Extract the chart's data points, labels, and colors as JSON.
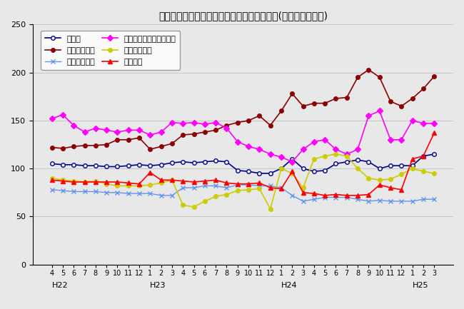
{
  "title": "三重県鉱工業生産及び主要業種別指数の推移(季節調整済指数)",
  "xlabels": [
    "4",
    "5",
    "6",
    "7",
    "8",
    "9",
    "10",
    "11",
    "12",
    "1",
    "2",
    "3",
    "4",
    "5",
    "6",
    "7",
    "8",
    "9",
    "10",
    "11",
    "12",
    "1",
    "2",
    "3",
    "4",
    "5",
    "6",
    "7",
    "8",
    "9",
    "10",
    "11",
    "12",
    "1",
    "2",
    "3"
  ],
  "year_labels": [
    {
      "label": "H22",
      "index": 0
    },
    {
      "label": "H23",
      "index": 9
    },
    {
      "label": "H24",
      "index": 21
    },
    {
      "label": "H25",
      "index": 33
    }
  ],
  "series_order": [
    "鉱工業",
    "一般機械工業",
    "電気機械工業",
    "電子部品・デバイス工業",
    "輸送機械工業",
    "化学工業"
  ],
  "legend_order": [
    "鉱工業",
    "一般機械工業",
    "電気機械工業",
    "電子部品・デバイス工業",
    "輸送機械工業",
    "化学工業"
  ],
  "series": {
    "鉱工業": {
      "color": "#00008B",
      "marker": "o",
      "markersize": 4,
      "markerfacecolor": "white",
      "markeredgecolor": "#00008B",
      "linewidth": 1.2,
      "values": [
        105,
        104,
        104,
        103,
        103,
        102,
        102,
        103,
        104,
        103,
        104,
        106,
        107,
        106,
        107,
        108,
        107,
        98,
        97,
        95,
        95,
        100,
        110,
        100,
        97,
        98,
        105,
        107,
        109,
        107,
        100,
        103,
        103,
        103,
        113,
        115
      ]
    },
    "一般機械工業": {
      "color": "#8B0000",
      "marker": "o",
      "markersize": 4,
      "markerfacecolor": "#8B0000",
      "markeredgecolor": "#8B0000",
      "linewidth": 1.2,
      "values": [
        122,
        121,
        123,
        124,
        124,
        125,
        130,
        130,
        132,
        120,
        123,
        126,
        135,
        136,
        138,
        140,
        145,
        148,
        150,
        155,
        145,
        160,
        178,
        165,
        168,
        168,
        173,
        174,
        195,
        203,
        195,
        170,
        165,
        173,
        183,
        196
      ]
    },
    "電気機械工業": {
      "color": "#6495ED",
      "marker": "x",
      "markersize": 5,
      "markerfacecolor": "#6495ED",
      "markeredgecolor": "#6495ED",
      "linewidth": 1.0,
      "values": [
        78,
        77,
        76,
        76,
        76,
        75,
        75,
        74,
        74,
        74,
        72,
        72,
        80,
        80,
        82,
        82,
        80,
        83,
        83,
        82,
        82,
        80,
        72,
        66,
        68,
        70,
        70,
        70,
        68,
        66,
        67,
        66,
        66,
        66,
        68,
        68
      ]
    },
    "電子部品・デバイス工業": {
      "color": "#FF00FF",
      "marker": "D",
      "markersize": 4,
      "markerfacecolor": "#FF00FF",
      "markeredgecolor": "#FF00FF",
      "linewidth": 1.2,
      "values": [
        152,
        156,
        145,
        138,
        142,
        140,
        138,
        140,
        140,
        135,
        138,
        148,
        147,
        148,
        146,
        148,
        142,
        128,
        123,
        120,
        115,
        112,
        107,
        120,
        128,
        130,
        120,
        115,
        120,
        155,
        160,
        130,
        130,
        150,
        147,
        147
      ]
    },
    "輸送機械工業": {
      "color": "#CCCC00",
      "marker": "o",
      "markersize": 4,
      "markerfacecolor": "#CCCC00",
      "markeredgecolor": "#CCCC00",
      "linewidth": 1.2,
      "values": [
        90,
        88,
        87,
        86,
        87,
        84,
        82,
        82,
        82,
        83,
        85,
        88,
        62,
        60,
        66,
        71,
        73,
        77,
        78,
        79,
        58,
        100,
        95,
        80,
        110,
        113,
        115,
        113,
        100,
        90,
        88,
        89,
        94,
        100,
        97,
        95
      ]
    },
    "化学工業": {
      "color": "#FF0000",
      "marker": "^",
      "markersize": 4,
      "markerfacecolor": "#FF0000",
      "markeredgecolor": "#FF0000",
      "linewidth": 1.2,
      "values": [
        88,
        87,
        86,
        86,
        86,
        86,
        86,
        85,
        84,
        96,
        88,
        88,
        87,
        86,
        87,
        88,
        85,
        84,
        84,
        85,
        80,
        79,
        97,
        75,
        74,
        72,
        73,
        72,
        72,
        73,
        83,
        80,
        78,
        110,
        113,
        137
      ]
    }
  },
  "ylim": [
    0,
    250
  ],
  "yticks": [
    0,
    50,
    100,
    150,
    200,
    250
  ],
  "figsize": [
    6.5,
    4.33
  ],
  "dpi": 100,
  "bg_color": "#E8E8E8",
  "grid_color": "#C0C0C0"
}
